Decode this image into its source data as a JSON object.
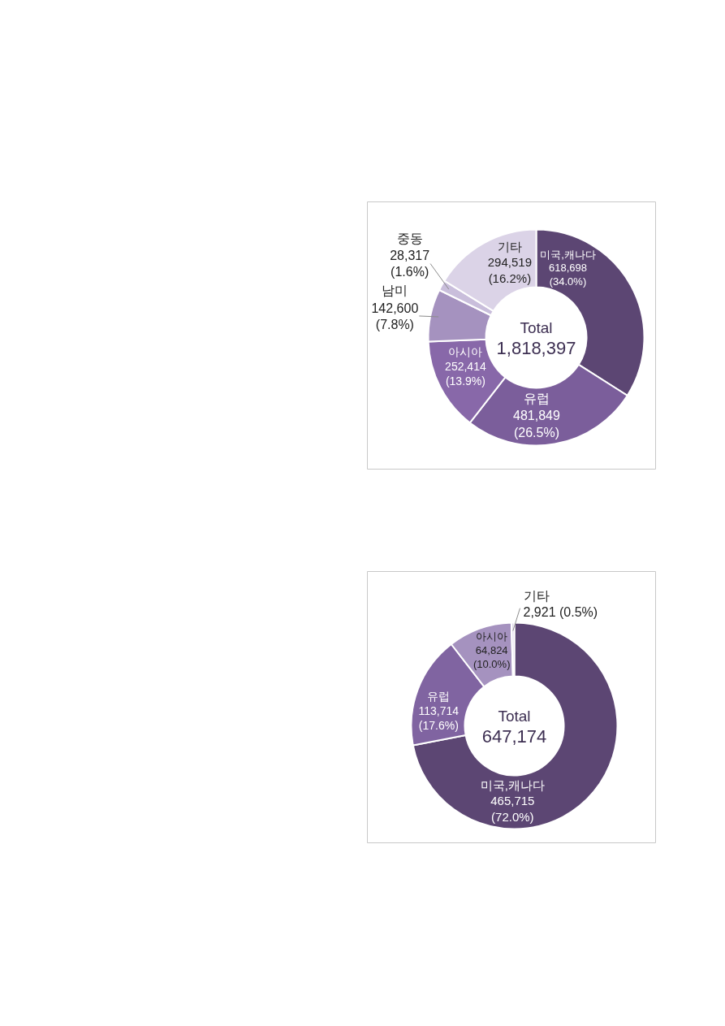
{
  "chart_data": [
    {
      "type": "donut",
      "categories": [
        "미국,캐나다",
        "유럽",
        "아시아",
        "남미",
        "중동",
        "기타"
      ],
      "values": [
        618698,
        481849,
        252414,
        142600,
        28317,
        294519
      ],
      "colors": [
        "#5c4673",
        "#7b5e9b",
        "#8868a9",
        "#a592bf",
        "#c9bedb",
        "#dbd3e7"
      ],
      "value_labels": [
        "618,698\n(34.0%)",
        "481,849\n(26.5%)",
        "252,414\n(13.9%)",
        "142,600\n(7.8%)",
        "28,317\n(1.6%)",
        "294,519\n(16.2%)"
      ],
      "annotations": [
        "Total",
        "1,818,397"
      ]
    },
    {
      "type": "donut",
      "categories": [
        "미국,캐나다",
        "유럽",
        "아시아",
        "기타"
      ],
      "values": [
        465715,
        113714,
        64824,
        2921
      ],
      "colors": [
        "#5c4673",
        "#8064a1",
        "#a592bf",
        "#e0d9ea"
      ],
      "value_labels": [
        "465,715\n(72.0%)",
        "113,714\n(17.6%)",
        "64,824\n(10.0%)",
        "2,921 (0.5%)"
      ],
      "annotations": [
        "Total",
        "647,174"
      ]
    }
  ]
}
